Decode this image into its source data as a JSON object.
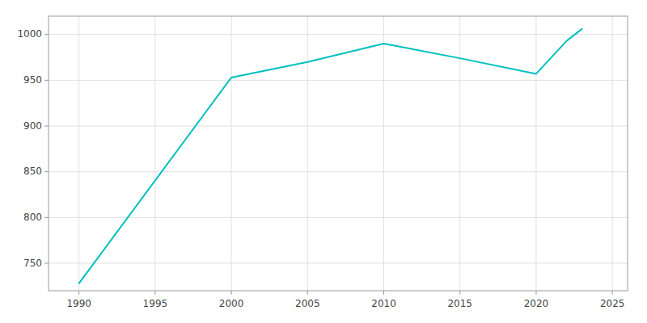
{
  "chart_data": {
    "type": "line",
    "x": [
      1990,
      2000,
      2005,
      2010,
      2015,
      2020,
      2022,
      2023
    ],
    "values": [
      728,
      953,
      970,
      990,
      974,
      957,
      993,
      1006
    ],
    "color": "#00BFBF",
    "xlim": [
      1988,
      2026
    ],
    "ylim": [
      720,
      1020
    ],
    "xticks": [
      1990,
      1995,
      2000,
      2005,
      2010,
      2015,
      2020,
      2025
    ],
    "yticks": [
      750,
      800,
      850,
      900,
      950,
      1000
    ],
    "grid": true
  }
}
